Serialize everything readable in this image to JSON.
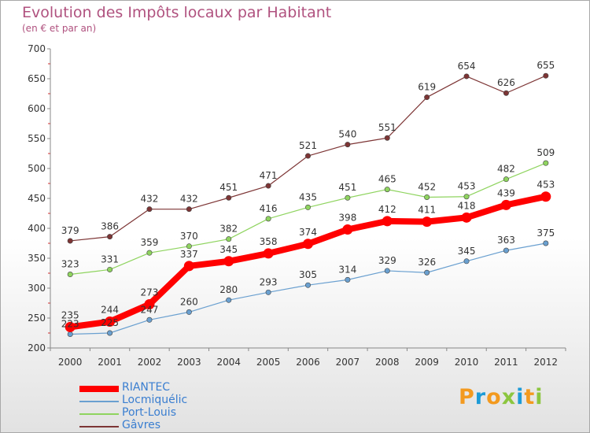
{
  "title": "Evolution des Impôts locaux par Habitant",
  "subtitle": "(en € et par an)",
  "logo": {
    "letters": [
      "P",
      "r",
      "o",
      "x",
      "i",
      "t",
      "i"
    ],
    "colors": [
      "#f39a1f",
      "#1d9bd7",
      "#f39a1f",
      "#8cc63f",
      "#1d9bd7",
      "#f39a1f",
      "#8cc63f"
    ]
  },
  "chart_data": {
    "type": "line",
    "x": [
      "2000",
      "2001",
      "2002",
      "2003",
      "2004",
      "2005",
      "2006",
      "2007",
      "2008",
      "2009",
      "2010",
      "2011",
      "2012"
    ],
    "ylim": [
      200,
      700
    ],
    "yticks": [
      200,
      250,
      300,
      350,
      400,
      450,
      500,
      550,
      600,
      650,
      700
    ],
    "legend_position": "bottom-left",
    "series": [
      {
        "name": "RIANTEC",
        "color": "#ff0000",
        "values": [
          235,
          244,
          273,
          337,
          345,
          358,
          374,
          398,
          412,
          411,
          418,
          439,
          453
        ]
      },
      {
        "name": "Locmiquélic",
        "color": "#6aa0d0",
        "values": [
          223,
          225,
          247,
          260,
          280,
          293,
          305,
          314,
          329,
          326,
          345,
          363,
          375
        ]
      },
      {
        "name": "Port-Louis",
        "color": "#8fd45f",
        "values": [
          323,
          331,
          359,
          370,
          382,
          416,
          435,
          451,
          465,
          452,
          453,
          482,
          509
        ]
      },
      {
        "name": "Gâvres",
        "color": "#7d3535",
        "values": [
          379,
          386,
          432,
          432,
          451,
          471,
          521,
          540,
          551,
          619,
          654,
          626,
          655
        ]
      }
    ]
  }
}
